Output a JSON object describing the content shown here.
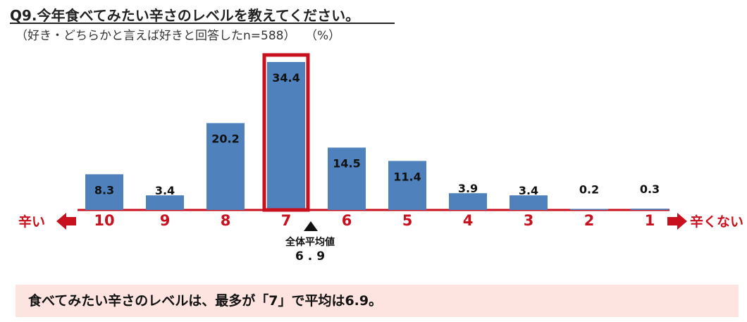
{
  "header": {
    "title": "Q9.今年食べてみたい辛さのレベルを教えてください。",
    "subtitle": "（好き・どちらかと言えば好きと回答したn=588）",
    "unit": "（%）"
  },
  "chart_data": {
    "type": "bar",
    "title": "Q9.今年食べてみたい辛さのレベルを教えてください。",
    "categories": [
      "10",
      "9",
      "8",
      "7",
      "6",
      "5",
      "4",
      "3",
      "2",
      "1"
    ],
    "values": [
      8.3,
      3.4,
      20.2,
      34.4,
      14.5,
      11.4,
      3.9,
      3.4,
      0.2,
      0.3
    ],
    "ylim": [
      0,
      35
    ],
    "grid": false,
    "highlight_category": "7",
    "bar_color": "#4f81bd",
    "highlight_color": "#c8101e",
    "axis_color": "#c8101e"
  },
  "axis_ends": {
    "left": "辛い",
    "right": "辛くない"
  },
  "average": {
    "label": "全体平均値",
    "value": "6.9"
  },
  "summary": "食べてみたい辛さのレベルは、最多が「7」で平均は6.9。"
}
